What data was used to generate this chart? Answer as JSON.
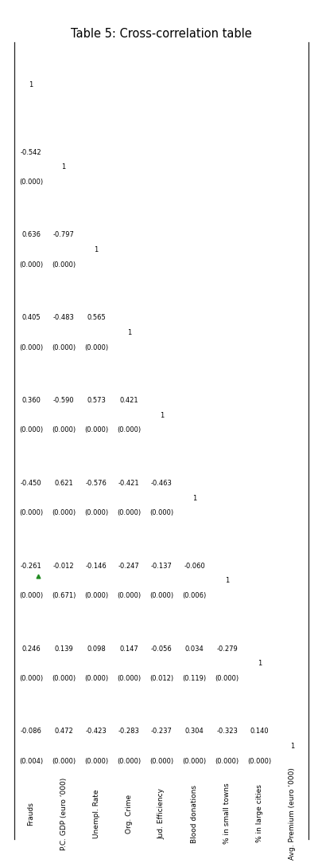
{
  "title": "Table 5: Cross-correlation table",
  "variables": [
    "Frauds",
    "P.C. GDP (euro ‘000)",
    "Unempl. Rate",
    "Org. Crime",
    "Jud. Efficiency",
    "Blood donations",
    "% in small towns",
    "% in large cities",
    "Avg. Premium (euro ‘000)"
  ],
  "corr_matrix": [
    [
      "1",
      "",
      "",
      "",
      "",
      "",
      "",
      "",
      ""
    ],
    [
      "-0.542",
      "1",
      "",
      "",
      "",
      "",
      "",
      "",
      ""
    ],
    [
      "0.636",
      "-0.797",
      "1",
      "",
      "",
      "",
      "",
      "",
      ""
    ],
    [
      "0.405",
      "-0.483",
      "0.565",
      "1",
      "",
      "",
      "",
      "",
      ""
    ],
    [
      "0.360",
      "-0.590",
      "0.573",
      "0.421",
      "1",
      "",
      "",
      "",
      ""
    ],
    [
      "-0.450",
      "0.621",
      "-0.576",
      "-0.421",
      "-0.463",
      "1",
      "",
      "",
      ""
    ],
    [
      "-0.261",
      "-0.012",
      "-0.146",
      "-0.247",
      "-0.137",
      "-0.060",
      "1",
      "",
      ""
    ],
    [
      "0.246",
      "0.139",
      "0.098",
      "0.147",
      "-0.056",
      "0.034",
      "-0.279",
      "1",
      ""
    ],
    [
      "-0.086",
      "0.472",
      "-0.423",
      "-0.283",
      "-0.237",
      "0.304",
      "-0.323",
      "0.140",
      "1"
    ]
  ],
  "pval_matrix": [
    [
      "",
      "",
      "",
      "",
      "",
      "",
      "",
      "",
      ""
    ],
    [
      "(0.000)",
      "",
      "",
      "",
      "",
      "",
      "",
      "",
      ""
    ],
    [
      "(0.000)",
      "(0.000)",
      "",
      "",
      "",
      "",
      "",
      "",
      ""
    ],
    [
      "(0.000)",
      "(0.000)",
      "(0.000)",
      "",
      "",
      "",
      "",
      "",
      ""
    ],
    [
      "(0.000)",
      "(0.000)",
      "(0.000)",
      "(0.000)",
      "",
      "",
      "",
      "",
      ""
    ],
    [
      "(0.000)",
      "(0.000)",
      "(0.000)",
      "(0.000)",
      "(0.000)",
      "",
      "",
      "",
      ""
    ],
    [
      "(0.000)",
      "(0.671)",
      "(0.000)",
      "(0.000)",
      "(0.000)",
      "(0.006)",
      "",
      "",
      ""
    ],
    [
      "(0.000)",
      "(0.000)",
      "(0.000)",
      "(0.000)",
      "(0.012)",
      "(0.119)",
      "(0.000)",
      "",
      ""
    ],
    [
      "(0.004)",
      "(0.000)",
      "(0.000)",
      "(0.000)",
      "(0.000)",
      "(0.000)",
      "(0.000)",
      "(0.000)",
      ""
    ]
  ],
  "n_vars": 9,
  "bg_color": "#ffffff",
  "text_color": "#000000",
  "title_fontsize": 10.5,
  "cell_fontsize": 6.0,
  "label_fontsize": 6.5
}
